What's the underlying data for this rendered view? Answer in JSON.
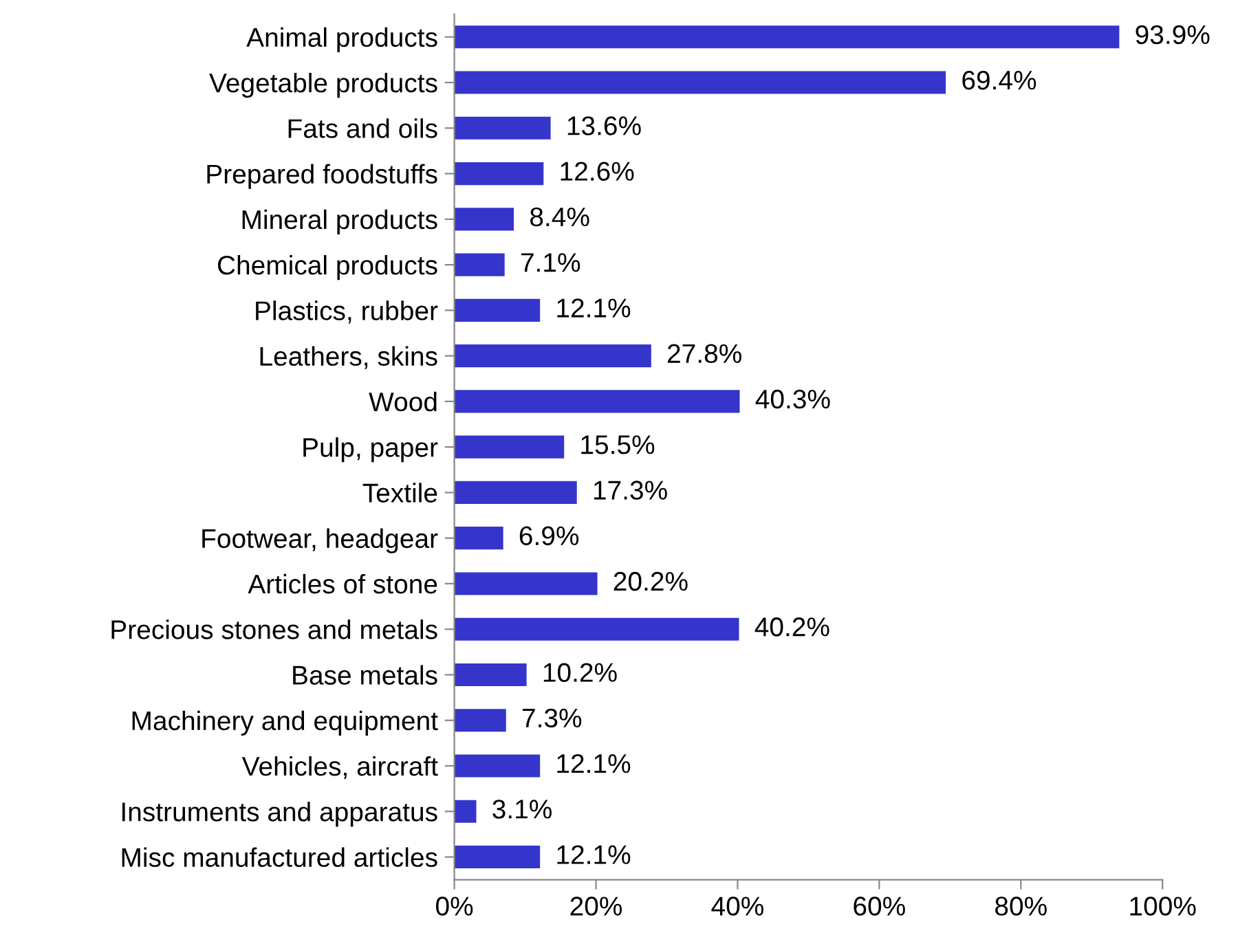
{
  "chart_data": {
    "type": "bar",
    "orientation": "horizontal",
    "categories": [
      "Animal products",
      "Vegetable products",
      "Fats and oils",
      "Prepared foodstuffs",
      "Mineral products",
      "Chemical products",
      "Plastics, rubber",
      "Leathers, skins",
      "Wood",
      "Pulp, paper",
      "Textile",
      "Footwear, headgear",
      "Articles of stone",
      "Precious stones and metals",
      "Base metals",
      "Machinery and equipment",
      "Vehicles, aircraft",
      "Instruments and apparatus",
      "Misc manufactured articles"
    ],
    "values": [
      93.9,
      69.4,
      13.6,
      12.6,
      8.4,
      7.1,
      12.1,
      27.8,
      40.3,
      15.5,
      17.3,
      6.9,
      20.2,
      40.2,
      10.2,
      7.3,
      12.1,
      3.1,
      12.1
    ],
    "value_labels": [
      "93.9%",
      "69.4%",
      "13.6%",
      "12.6%",
      "8.4%",
      "7.1%",
      "12.1%",
      "27.8%",
      "40.3%",
      "15.5%",
      "17.3%",
      "6.9%",
      "20.2%",
      "40.2%",
      "10.2%",
      "7.3%",
      "12.1%",
      "3.1%",
      "12.1%"
    ],
    "color": "#3535cc",
    "xlim": [
      0,
      100
    ],
    "xticks": [
      {
        "value": 0,
        "label": "0%"
      },
      {
        "value": 20,
        "label": "20%"
      },
      {
        "value": 40,
        "label": "40%"
      },
      {
        "value": 60,
        "label": "60%"
      },
      {
        "value": 80,
        "label": "80%"
      },
      {
        "value": 100,
        "label": "100%"
      }
    ],
    "grid": false,
    "legend": false
  }
}
